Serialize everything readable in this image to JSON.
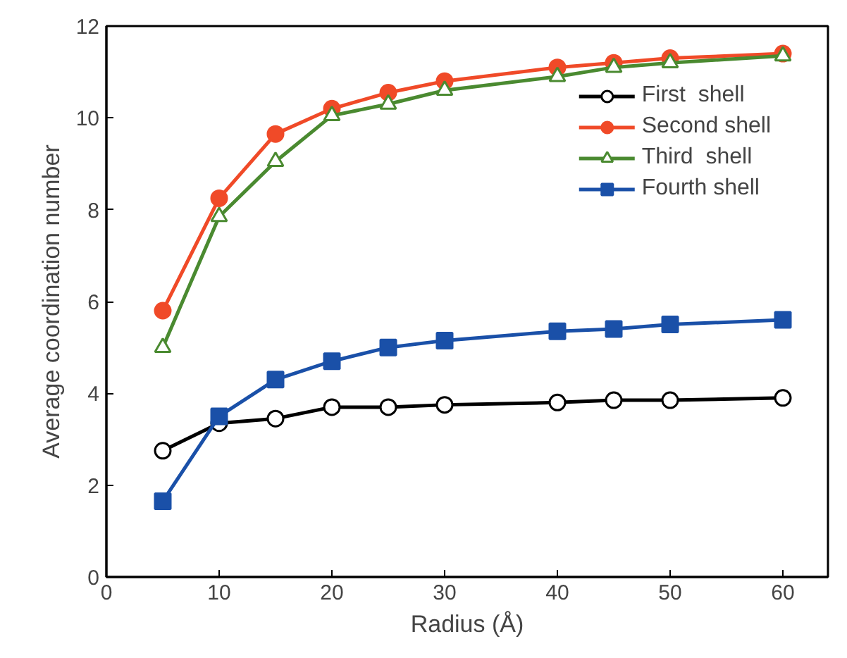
{
  "chart_data": {
    "type": "line",
    "xlabel": "Radius (Å)",
    "ylabel": "Average coordination number",
    "x": [
      5,
      10,
      15,
      20,
      25,
      30,
      40,
      45,
      50,
      60
    ],
    "series": [
      {
        "name": "First  shell",
        "color": "#000000",
        "marker": "circle",
        "values": [
          2.75,
          3.35,
          3.45,
          3.7,
          3.7,
          3.75,
          3.8,
          3.85,
          3.85,
          3.9
        ]
      },
      {
        "name": "Second shell",
        "color": "#f04a28",
        "marker": "circle",
        "values": [
          5.8,
          8.25,
          9.65,
          10.2,
          10.55,
          10.8,
          11.1,
          11.2,
          11.3,
          11.4
        ]
      },
      {
        "name": "Third  shell",
        "color": "#4a8a30",
        "marker": "triangle",
        "values": [
          5.0,
          7.85,
          9.05,
          10.05,
          10.3,
          10.6,
          10.9,
          11.1,
          11.2,
          11.35
        ]
      },
      {
        "name": "Fourth shell",
        "color": "#1a50a8",
        "marker": "square",
        "values": [
          1.65,
          3.5,
          4.3,
          4.7,
          5.0,
          5.15,
          5.35,
          5.4,
          5.5,
          5.6
        ]
      }
    ],
    "xlim": [
      0,
      64
    ],
    "ylim": [
      0,
      12
    ],
    "xticks": [
      0,
      10,
      20,
      30,
      40,
      50,
      60
    ],
    "yticks": [
      0,
      2,
      4,
      6,
      8,
      10,
      12
    ],
    "grid": false,
    "legend": "top right",
    "line_style": "solid"
  }
}
